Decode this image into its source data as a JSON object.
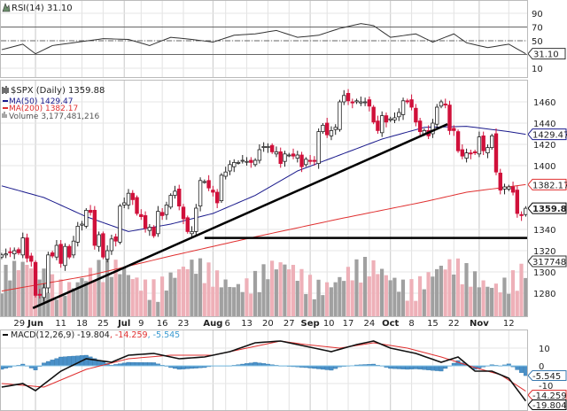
{
  "chart_data": [
    {
      "type": "line",
      "panel": "rsi",
      "title": "RSI(14) 31.10",
      "last_value_label": "31.10",
      "y_ticks": [
        "90",
        "70",
        "50",
        "10"
      ],
      "ylim": [
        0,
        100
      ],
      "reference_lines": [
        70,
        50,
        30
      ],
      "series": [
        {
          "index": [
            0,
            5,
            8,
            12,
            18,
            24,
            30,
            35,
            40,
            45,
            50,
            55,
            60,
            65,
            70,
            75,
            80,
            85,
            88,
            92,
            98,
            102,
            107,
            110,
            115,
            120,
            124
          ],
          "values": [
            37,
            45,
            31,
            43,
            48,
            53,
            52,
            43,
            55,
            52,
            48,
            58,
            60,
            65,
            55,
            58,
            68,
            75,
            72,
            55,
            60,
            48,
            60,
            47,
            40,
            45,
            31.1
          ]
        }
      ],
      "colors": {
        "line": "#333333",
        "overbought_fill": "#6b8e6b"
      }
    },
    {
      "type": "candlestick",
      "panel": "price",
      "title": "$SPX (Daily) 1359.88",
      "legend": [
        {
          "label": "MA(50) 1429.47",
          "color": "#1a1a8c"
        },
        {
          "label": "MA(200) 1382.17",
          "color": "#e03030"
        },
        {
          "label": "Volume 3,177,481,216",
          "color": "#777777"
        }
      ],
      "last_value_labels": {
        "ma50": "1429.47",
        "ma200": "1382.17",
        "close": "1359.88",
        "volume": "3177481"
      },
      "y_ticks": [
        "1460",
        "1440",
        "1420",
        "1400",
        "1340",
        "1320",
        "1300",
        "1280"
      ],
      "ylim": [
        1262,
        1480
      ],
      "closes": [
        1316,
        1317,
        1318,
        1320,
        1318,
        1332,
        1313,
        1310,
        1278,
        1278,
        1285,
        1316,
        1315,
        1325,
        1308,
        1324,
        1314,
        1329,
        1343,
        1345,
        1358,
        1356,
        1325,
        1335,
        1314,
        1320,
        1331,
        1329,
        1362,
        1365,
        1374,
        1368,
        1355,
        1352,
        1341,
        1342,
        1334,
        1357,
        1353,
        1363,
        1372,
        1376,
        1362,
        1350,
        1338,
        1338,
        1360,
        1386,
        1385,
        1379,
        1375,
        1365,
        1391,
        1394,
        1401,
        1403,
        1403,
        1405,
        1404,
        1403,
        1405,
        1415,
        1418,
        1418,
        1413,
        1413,
        1402,
        1411,
        1410,
        1409,
        1410,
        1399,
        1406,
        1404,
        1404,
        1432,
        1438,
        1429,
        1433,
        1436,
        1460,
        1466,
        1461,
        1459,
        1461,
        1460,
        1460,
        1456,
        1441,
        1433,
        1447,
        1441,
        1444,
        1445,
        1450,
        1461,
        1460,
        1455,
        1441,
        1432,
        1433,
        1428,
        1440,
        1455,
        1460,
        1457,
        1433,
        1433,
        1414,
        1409,
        1412,
        1411,
        1412,
        1427,
        1414,
        1417,
        1428,
        1394,
        1377,
        1380,
        1380,
        1375,
        1355,
        1353,
        1359.88
      ],
      "ma50": {
        "index": [
          0,
          10,
          20,
          30,
          40,
          50,
          60,
          70,
          80,
          90,
          100,
          110,
          120,
          124
        ],
        "values": [
          1381,
          1370,
          1352,
          1338,
          1345,
          1355,
          1372,
          1395,
          1410,
          1425,
          1436,
          1437,
          1432,
          1429.47
        ]
      },
      "ma200": {
        "index": [
          0,
          20,
          40,
          60,
          80,
          100,
          110,
          124
        ],
        "values": [
          1282,
          1296,
          1315,
          1333,
          1350,
          1366,
          1375,
          1382.17
        ]
      },
      "trendline": {
        "from": [
          7.4,
          1266
        ],
        "to": [
          105.5,
          1439
        ]
      },
      "support_line": {
        "value": 1332,
        "from_index": 48
      },
      "colors": {
        "up": "#ffffff",
        "down": "#d0103a",
        "volume_up": "#a0a0a0",
        "volume_down": "#eeb0b8"
      }
    },
    {
      "type": "line",
      "panel": "macd",
      "title": "MACD(12,26,9)",
      "legend_values": {
        "macd": "-19.804",
        "signal": "-14.259",
        "histogram": "-5.545"
      },
      "y_ticks": [
        "10",
        "0",
        "-10"
      ],
      "ylim": [
        -25,
        20
      ],
      "macd": {
        "index": [
          0,
          5,
          8,
          14,
          20,
          26,
          30,
          36,
          42,
          48,
          54,
          60,
          66,
          72,
          78,
          84,
          88,
          92,
          98,
          104,
          108,
          112,
          116,
          120,
          124
        ],
        "values": [
          -12,
          -10,
          -14,
          -3,
          4,
          2,
          6,
          7,
          4,
          5,
          8,
          13,
          14,
          11,
          8,
          12,
          14,
          10,
          7,
          2,
          5,
          -3,
          -3,
          -7,
          -19.804
        ]
      },
      "signal": {
        "index": [
          0,
          10,
          20,
          30,
          40,
          50,
          60,
          66,
          72,
          80,
          88,
          96,
          104,
          112,
          118,
          124
        ],
        "values": [
          -10,
          -12,
          -2,
          4,
          6,
          6,
          11,
          14,
          12,
          10,
          13,
          10,
          5,
          -1,
          -5,
          -14.259
        ]
      },
      "colors": {
        "macd": "#111111",
        "signal": "#e03030",
        "histogram": "#4a90c8"
      }
    }
  ],
  "x_axis": {
    "ticks": [
      {
        "index": 5,
        "label": "29",
        "bold": false
      },
      {
        "index": 8,
        "label": "Jun",
        "bold": true
      },
      {
        "index": 14,
        "label": "11",
        "bold": false
      },
      {
        "index": 19,
        "label": "18",
        "bold": false
      },
      {
        "index": 24,
        "label": "25",
        "bold": false
      },
      {
        "index": 29,
        "label": "Jul",
        "bold": true
      },
      {
        "index": 33,
        "label": "9",
        "bold": false
      },
      {
        "index": 38,
        "label": "16",
        "bold": false
      },
      {
        "index": 43,
        "label": "23",
        "bold": false
      },
      {
        "index": 50,
        "label": "Aug",
        "bold": true
      },
      {
        "index": 53,
        "label": "6",
        "bold": false
      },
      {
        "index": 58,
        "label": "13",
        "bold": false
      },
      {
        "index": 63,
        "label": "20",
        "bold": false
      },
      {
        "index": 68,
        "label": "27",
        "bold": false
      },
      {
        "index": 73,
        "label": "Sep",
        "bold": true
      },
      {
        "index": 77,
        "label": "10",
        "bold": false
      },
      {
        "index": 82,
        "label": "17",
        "bold": false
      },
      {
        "index": 87,
        "label": "24",
        "bold": false
      },
      {
        "index": 92,
        "label": "Oct",
        "bold": true
      },
      {
        "index": 97,
        "label": "8",
        "bold": false
      },
      {
        "index": 102,
        "label": "15",
        "bold": false
      },
      {
        "index": 107,
        "label": "22",
        "bold": false
      },
      {
        "index": 113,
        "label": "Nov",
        "bold": true
      },
      {
        "index": 120,
        "label": "12",
        "bold": false
      }
    ]
  },
  "labels": {
    "rsi_title": "RSI(14) 31.10",
    "spx_title": "$SPX (Daily) 1359.88",
    "ma50": "MA(50) 1429.47",
    "ma200": "MA(200) 1382.17",
    "volume": "Volume 3,177,481,216",
    "macd_name": "MACD(12,26,9) -19.804",
    "macd_signal": ", -14.259",
    "macd_hist": ", -5.545"
  }
}
